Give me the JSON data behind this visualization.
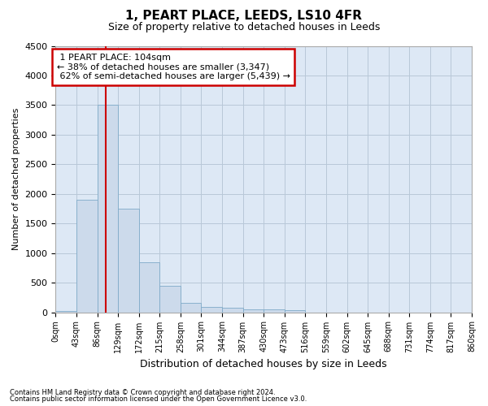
{
  "title1": "1, PEART PLACE, LEEDS, LS10 4FR",
  "title2": "Size of property relative to detached houses in Leeds",
  "xlabel": "Distribution of detached houses by size in Leeds",
  "ylabel": "Number of detached properties",
  "bar_color": "#ccdaeb",
  "bar_edge_color": "#7faac8",
  "background_color": "#ffffff",
  "plot_bg_color": "#dde8f5",
  "grid_color": "#b8c8d8",
  "annotation_box_color": "#cc0000",
  "vline_color": "#cc0000",
  "bin_edges": [
    0,
    43,
    86,
    129,
    172,
    215,
    258,
    301,
    344,
    387,
    430,
    473,
    516,
    559,
    602,
    645,
    688,
    731,
    774,
    817,
    860
  ],
  "bin_labels": [
    "0sqm",
    "43sqm",
    "86sqm",
    "129sqm",
    "172sqm",
    "215sqm",
    "258sqm",
    "301sqm",
    "344sqm",
    "387sqm",
    "430sqm",
    "473sqm",
    "516sqm",
    "559sqm",
    "602sqm",
    "645sqm",
    "688sqm",
    "731sqm",
    "774sqm",
    "817sqm",
    "860sqm"
  ],
  "counts": [
    15,
    1900,
    3500,
    1750,
    850,
    450,
    160,
    90,
    70,
    55,
    45,
    30,
    0,
    0,
    0,
    0,
    0,
    0,
    0,
    0
  ],
  "property_size": 104,
  "property_label": "1 PEART PLACE: 104sqm",
  "pct_smaller": 38,
  "n_smaller": 3347,
  "pct_larger": 62,
  "n_larger": 5439,
  "ylim": [
    0,
    4500
  ],
  "yticks": [
    0,
    500,
    1000,
    1500,
    2000,
    2500,
    3000,
    3500,
    4000,
    4500
  ],
  "footnote1": "Contains HM Land Registry data © Crown copyright and database right 2024.",
  "footnote2": "Contains public sector information licensed under the Open Government Licence v3.0."
}
